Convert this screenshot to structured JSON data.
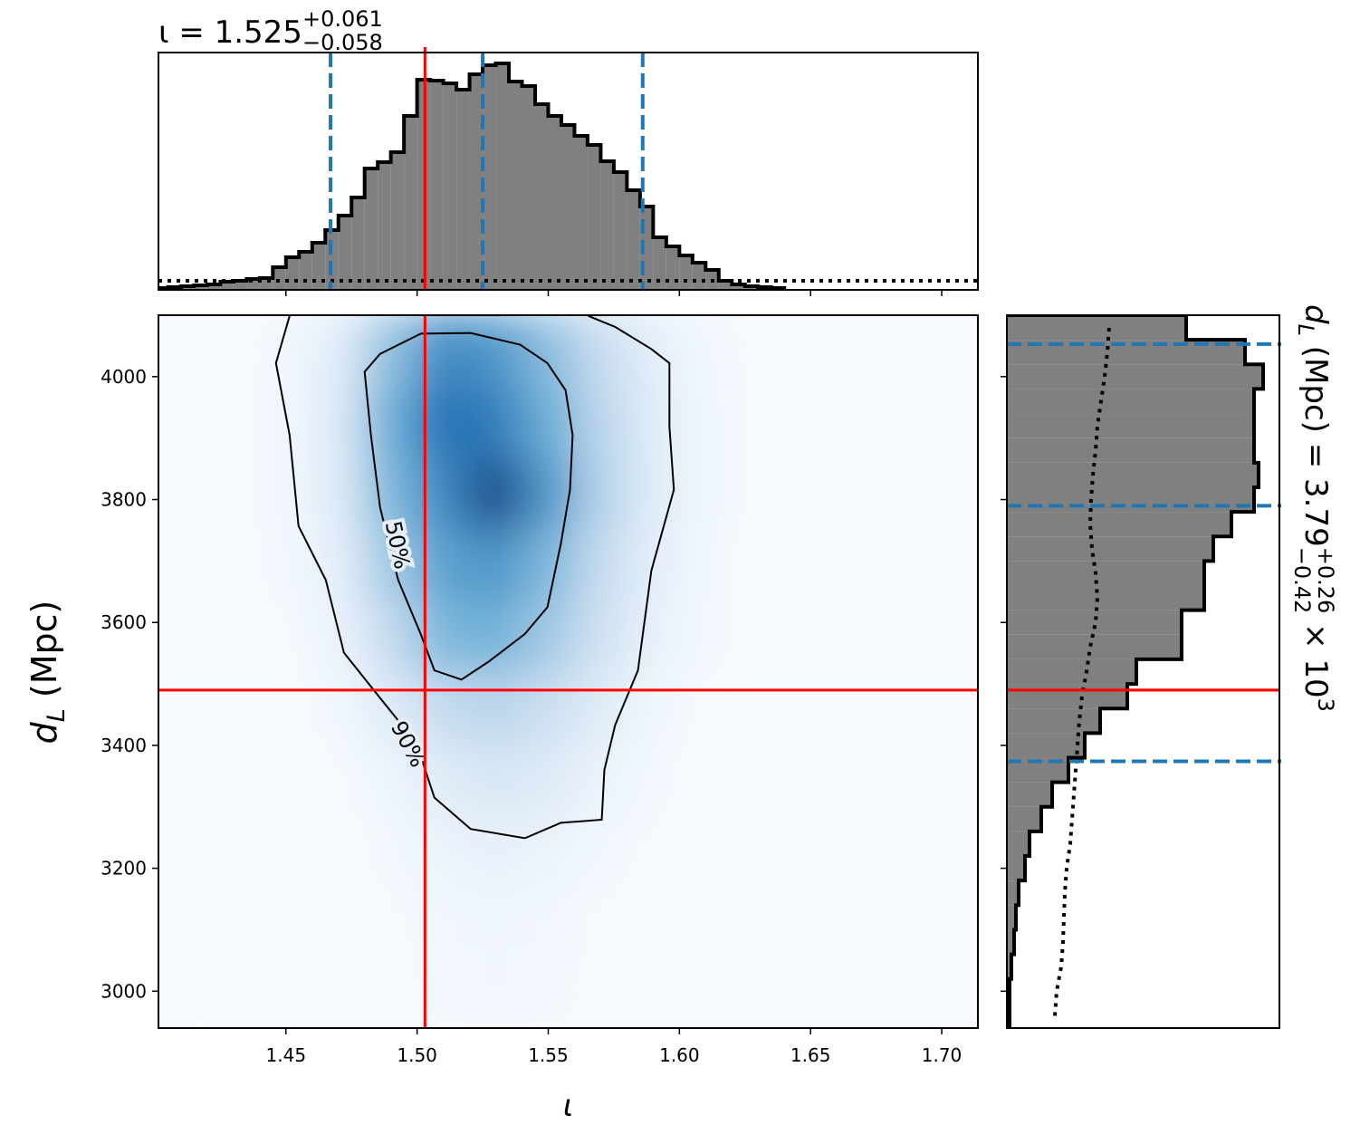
{
  "chart_data": [
    {
      "type": "histogram",
      "title": "ι = 1.525",
      "title_upper": "+0.061",
      "title_lower": "−0.058",
      "bins": [
        1.4,
        1.405,
        1.41,
        1.415,
        1.42,
        1.425,
        1.43,
        1.435,
        1.44,
        1.445,
        1.45,
        1.455,
        1.46,
        1.465,
        1.47,
        1.475,
        1.48,
        1.485,
        1.49,
        1.495,
        1.5,
        1.505,
        1.51,
        1.515,
        1.52,
        1.525,
        1.53,
        1.535,
        1.54,
        1.545,
        1.55,
        1.555,
        1.56,
        1.565,
        1.57,
        1.575,
        1.58,
        1.585,
        1.59,
        1.595,
        1.6,
        1.605,
        1.61,
        1.615,
        1.62,
        1.625,
        1.63,
        1.635,
        1.64
      ],
      "counts": [
        2,
        3,
        4,
        5,
        6,
        9,
        10,
        12,
        13,
        25,
        36,
        42,
        52,
        66,
        82,
        102,
        134,
        141,
        152,
        192,
        232,
        231,
        228,
        221,
        238,
        248,
        250,
        230,
        225,
        205,
        192,
        182,
        170,
        160,
        142,
        130,
        110,
        92,
        58,
        48,
        38,
        30,
        22,
        10,
        6,
        4,
        3,
        2
      ],
      "color": "#808080",
      "prior_level": 10,
      "xlim": [
        1.4014,
        1.7138
      ],
      "ylim": [
        0,
        262
      ],
      "xticks": [
        1.45,
        {
          "value": 1.5,
          "label": "1.50"
        },
        1.55,
        {
          "value": 1.6,
          "label": "1.60"
        },
        1.65,
        {
          "value": 1.7,
          "label": "1.70"
        }
      ],
      "truth": 1.503,
      "truth_color": "#ff0000",
      "quantiles": [
        1.467,
        1.525,
        1.586
      ],
      "quantile_color": "#1f77b4"
    },
    {
      "type": "heatmap",
      "x_edges": [
        1.4,
        1.42,
        1.44,
        1.46,
        1.48,
        1.5,
        1.52,
        1.54,
        1.56,
        1.58,
        1.6,
        1.62,
        1.64,
        1.66,
        1.68,
        1.7,
        1.72
      ],
      "y_edges": [
        2940,
        3056,
        3172,
        3288,
        3404,
        3520,
        3636,
        3752,
        3868,
        3984,
        4100
      ],
      "z": [
        [
          0,
          0,
          0,
          0,
          0,
          0.2,
          0.3,
          0.2,
          0.1,
          0,
          0,
          0,
          0,
          0,
          0,
          0
        ],
        [
          0,
          0,
          0,
          0,
          0.1,
          0.3,
          0.4,
          0.3,
          0.1,
          0,
          0,
          0,
          0,
          0,
          0,
          0
        ],
        [
          0,
          0,
          0,
          0,
          0.2,
          0.6,
          0.8,
          0.6,
          0.3,
          0.1,
          0,
          0,
          0,
          0,
          0,
          0
        ],
        [
          0,
          0,
          0,
          0.1,
          0.5,
          1.2,
          1.6,
          1.3,
          0.6,
          0.2,
          0,
          0,
          0,
          0,
          0,
          0
        ],
        [
          0,
          0,
          0,
          0.3,
          1.2,
          2.5,
          2.8,
          2.2,
          1.2,
          0.4,
          0.1,
          0,
          0,
          0,
          0,
          0
        ],
        [
          0,
          0,
          0.1,
          0.6,
          2.5,
          4.5,
          4.8,
          3.5,
          2,
          0.8,
          0.2,
          0,
          0,
          0,
          0,
          0
        ],
        [
          0,
          0,
          0.2,
          0.9,
          3.5,
          5.5,
          6,
          4.5,
          2.5,
          1,
          0.3,
          0,
          0,
          0,
          0,
          0
        ],
        [
          0,
          0,
          0.3,
          1.2,
          4.5,
          6.5,
          9,
          6,
          3,
          1.2,
          0.4,
          0.1,
          0,
          0,
          0,
          0
        ],
        [
          0,
          0,
          0.3,
          1.3,
          5,
          7.5,
          7,
          5,
          2.8,
          1.2,
          0.4,
          0.1,
          0,
          0,
          0,
          0
        ],
        [
          0,
          0,
          0.3,
          1.1,
          4,
          6.5,
          6,
          4.2,
          2.4,
          1,
          0.3,
          0.1,
          0,
          0,
          0,
          0
        ]
      ],
      "zlim": [
        0,
        10
      ],
      "colormap": [
        "#f7fbff",
        "#c6dbef",
        "#6baed6",
        "#2171b5",
        "#08306b"
      ],
      "xlim": [
        1.4014,
        1.7138
      ],
      "ylim": [
        2940,
        4100
      ],
      "xticks": [
        1.45,
        {
          "value": 1.5,
          "label": "1.50"
        },
        1.55,
        {
          "value": 1.6,
          "label": "1.60"
        },
        1.65,
        {
          "value": 1.7,
          "label": "1.70"
        }
      ],
      "yticks": [
        3000,
        3200,
        3400,
        3600,
        3800,
        4000
      ],
      "xlabel": "ι",
      "ylabel_symbol": "d",
      "ylabel_subscript": "L",
      "ylabel_unit": " (Mpc)",
      "truth_x": 1.503,
      "truth_y": 3490,
      "truth_color": "#ff0000",
      "contours": [
        {
          "label": "50%",
          "closed": true,
          "x": [
            1.5014,
            1.5204,
            1.5393,
            1.5497,
            1.5566,
            1.5593,
            1.5583,
            1.5548,
            1.5497,
            1.541,
            1.5272,
            1.5169,
            1.5066,
            1.5014,
            1.4928,
            1.4859,
            1.4824,
            1.48,
            1.4859
          ],
          "y": [
            4070,
            4071,
            4052,
            4022,
            3978,
            3905,
            3816,
            3728,
            3625,
            3581,
            3536,
            3507,
            3522,
            3581,
            3669,
            3787,
            3905,
            4008,
            4037
          ]
        },
        {
          "label": "90%",
          "closed": false,
          "x": [
            1.4514,
            1.4462,
            1.4514,
            1.4548,
            1.4652,
            1.4721,
            1.4859,
            1.4997,
            1.5066,
            1.5204,
            1.5411,
            1.5548,
            1.5704,
            1.5714,
            1.5755,
            1.5842,
            1.5893,
            1.5979,
            1.5962,
            1.5962,
            1.5893,
            1.5755,
            1.5652
          ],
          "y": [
            4099,
            4022,
            3905,
            3757,
            3669,
            3551,
            3477,
            3404,
            3315,
            3264,
            3249,
            3274,
            3279,
            3360,
            3433,
            3522,
            3684,
            3816,
            3919,
            4022,
            4045,
            4081,
            4099
          ]
        }
      ]
    },
    {
      "type": "histogram",
      "orientation": "horizontal",
      "bins": [
        2940,
        2980,
        3020,
        3060,
        3100,
        3140,
        3180,
        3220,
        3260,
        3300,
        3340,
        3380,
        3420,
        3460,
        3500,
        3540,
        3580,
        3620,
        3660,
        3700,
        3740,
        3780,
        3820,
        3860,
        3900,
        3940,
        3980,
        4020,
        4060,
        4100
      ],
      "counts": [
        3,
        3,
        5,
        8,
        10,
        13,
        20,
        25,
        38,
        50,
        68,
        86,
        103,
        133,
        143,
        193,
        193,
        218,
        218,
        228,
        248,
        273,
        278,
        273,
        273,
        273,
        283,
        263,
        198
      ],
      "prior_values": [
        53,
        55,
        60,
        62,
        63,
        64,
        66,
        70,
        72,
        74,
        76,
        78,
        80,
        83,
        88,
        92,
        98,
        100,
        98,
        94,
        92,
        93,
        95,
        98,
        100,
        104,
        108,
        111,
        113
      ],
      "color": "#808080",
      "xlim": [
        0,
        301
      ],
      "ylim": [
        2940,
        4100
      ],
      "yticks": [
        3000,
        3200,
        3400,
        3600,
        3800,
        4000
      ],
      "truth": 3490,
      "truth_color": "#ff0000",
      "quantiles": [
        3374,
        3790,
        4053
      ],
      "quantile_color": "#1f77b4",
      "label_symbol": "d",
      "label_subscript": "L",
      "label_text": " (Mpc) = 3.79",
      "label_upper": "+0.26",
      "label_lower": "−0.42",
      "label_factor": " × 10",
      "label_exponent": "3"
    }
  ]
}
